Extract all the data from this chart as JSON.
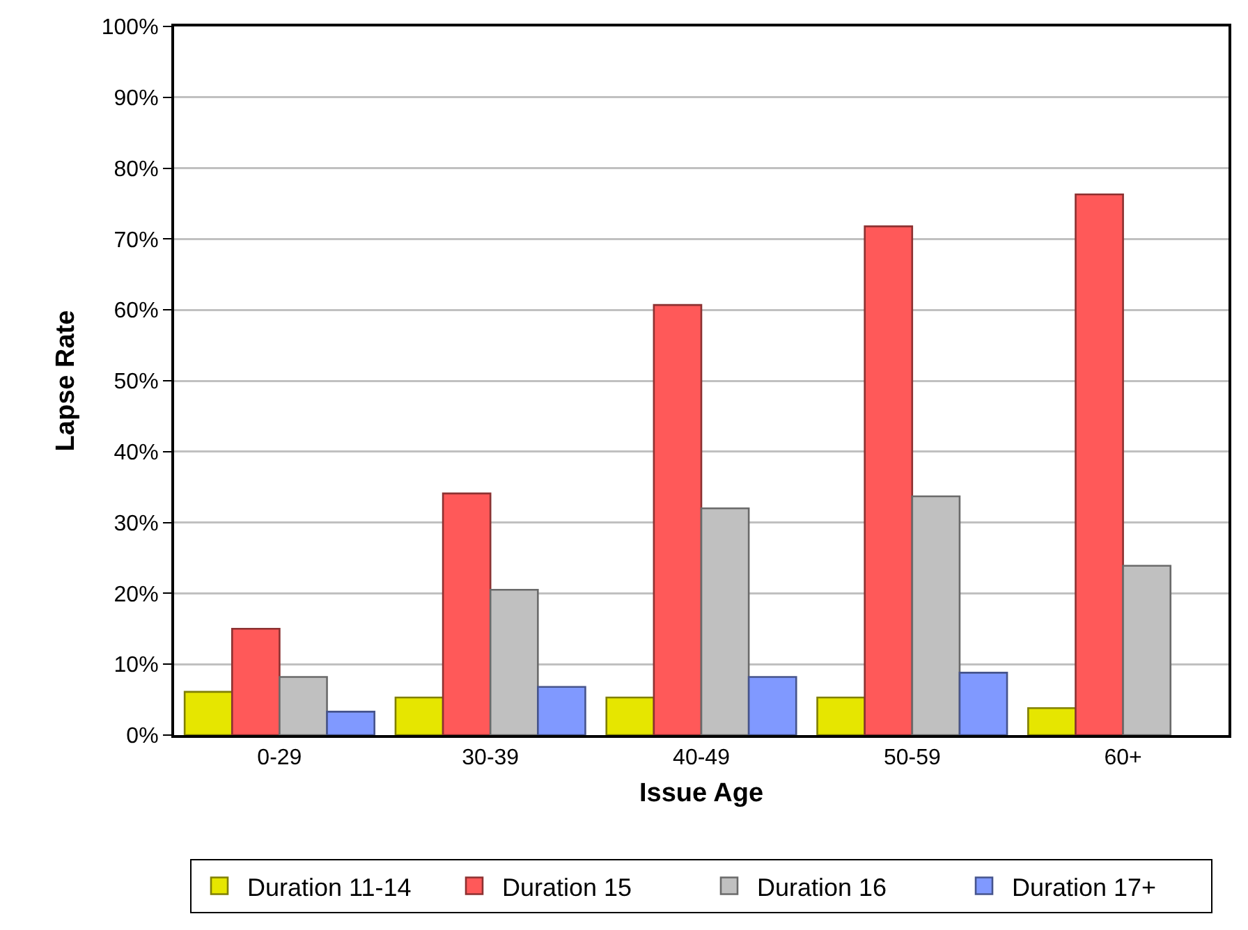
{
  "chart_data": {
    "type": "bar",
    "xlabel": "Issue Age",
    "ylabel": "Lapse Rate",
    "categories": [
      "0-29",
      "30-39",
      "40-49",
      "50-59",
      "60+"
    ],
    "series": [
      {
        "name": "Duration 11-14",
        "color": "#e6e600",
        "values": [
          6.1,
          5.3,
          5.3,
          5.3,
          3.8
        ]
      },
      {
        "name": "Duration 15",
        "color": "#ff5959",
        "values": [
          15.0,
          34.1,
          60.7,
          71.8,
          76.3
        ]
      },
      {
        "name": "Duration 16",
        "color": "#c0c0c0",
        "values": [
          8.2,
          20.5,
          32.0,
          33.7,
          23.9
        ]
      },
      {
        "name": "Duration 17+",
        "color": "#8099ff",
        "values": [
          3.3,
          6.8,
          8.2,
          8.8,
          null
        ]
      }
    ],
    "ylim": [
      0,
      100
    ],
    "yticks": [
      {
        "value": 0,
        "label": "0%"
      },
      {
        "value": 10,
        "label": "10%"
      },
      {
        "value": 20,
        "label": "20%"
      },
      {
        "value": 30,
        "label": "30%"
      },
      {
        "value": 40,
        "label": "40%"
      },
      {
        "value": 50,
        "label": "50%"
      },
      {
        "value": 60,
        "label": "60%"
      },
      {
        "value": 70,
        "label": "70%"
      },
      {
        "value": 80,
        "label": "80%"
      },
      {
        "value": 90,
        "label": "90%"
      },
      {
        "value": 100,
        "label": "100%"
      }
    ],
    "grid": "y",
    "legend": "bottom"
  }
}
